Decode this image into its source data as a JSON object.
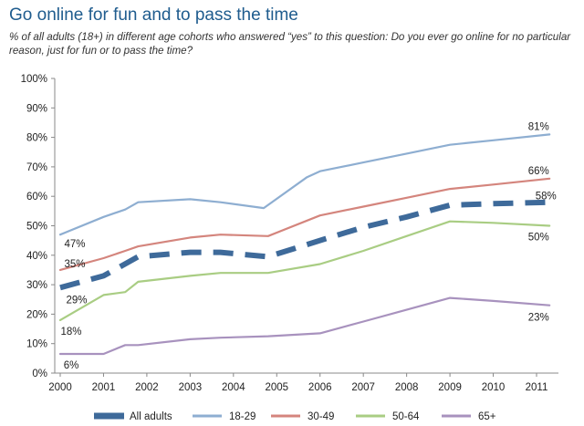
{
  "chart_data": {
    "type": "line",
    "title": "Go online for fun and to pass the time",
    "subtitle": "% of all adults (18+) in different age cohorts who answered “yes” to this question: Do you ever go online for no particular reason, just for fun or to pass the time?",
    "xlabel": "",
    "ylabel": "",
    "ylim": [
      0,
      100
    ],
    "yticks": [
      "0%",
      "10%",
      "20%",
      "30%",
      "40%",
      "50%",
      "60%",
      "70%",
      "80%",
      "90%",
      "100%"
    ],
    "xlim": [
      2000,
      2011.5
    ],
    "xticks": [
      "2000",
      "2001",
      "2002",
      "2003",
      "2004",
      "2005",
      "2006",
      "2007",
      "2008",
      "2009",
      "2010",
      "2011"
    ],
    "grid": false,
    "legend_position": "bottom",
    "series": [
      {
        "name": "All adults",
        "color": "#3e6a9a",
        "dashed": true,
        "x": [
          2000,
          2001,
          2001.8,
          2003,
          2003.7,
          2004.8,
          2006,
          2007,
          2008,
          2009,
          2010,
          2011.3
        ],
        "y": [
          29,
          33,
          39.5,
          41,
          41,
          39.5,
          45,
          49.5,
          53,
          57,
          57.5,
          58
        ]
      },
      {
        "name": "18-29",
        "color": "#8eaed1",
        "dashed": false,
        "x": [
          2000,
          2001,
          2001.5,
          2001.8,
          2003,
          2003.7,
          2004.7,
          2005.7,
          2006,
          2007,
          2008,
          2009,
          2010,
          2011.3
        ],
        "y": [
          47,
          53,
          55.5,
          58,
          59,
          58,
          56,
          66.5,
          68.5,
          71.5,
          74.5,
          77.5,
          79,
          81
        ]
      },
      {
        "name": "30-49",
        "color": "#d4857d",
        "dashed": false,
        "x": [
          2000,
          2001,
          2001.5,
          2001.8,
          2003,
          2003.7,
          2004.8,
          2006,
          2007,
          2008,
          2009,
          2010,
          2011.3
        ],
        "y": [
          35,
          39,
          41.5,
          43,
          46,
          47,
          46.5,
          53.5,
          56.5,
          59.5,
          62.5,
          64,
          66
        ]
      },
      {
        "name": "50-64",
        "color": "#a9cd83",
        "dashed": false,
        "x": [
          2000,
          2001,
          2001.5,
          2001.8,
          2003,
          2003.7,
          2004.8,
          2006,
          2007,
          2008,
          2009,
          2010,
          2011.3
        ],
        "y": [
          18,
          26.5,
          27.5,
          31,
          33,
          34,
          34,
          37,
          41.5,
          46.5,
          51.5,
          51,
          50
        ]
      },
      {
        "name": "65+",
        "color": "#a892be",
        "dashed": false,
        "x": [
          2000,
          2001,
          2001.5,
          2001.8,
          2003,
          2003.7,
          2004.8,
          2006,
          2007,
          2008,
          2009,
          2010,
          2011.3
        ],
        "y": [
          6.5,
          6.5,
          9.5,
          9.5,
          11.5,
          12,
          12.5,
          13.5,
          17.5,
          21.5,
          25.5,
          24.5,
          23
        ]
      }
    ],
    "annotations": [
      {
        "text": "47%",
        "x": 2000,
        "y": 47
      },
      {
        "text": "35%",
        "x": 2000,
        "y": 35
      },
      {
        "text": "29%",
        "x": 2000,
        "y": 29
      },
      {
        "text": "18%",
        "x": 2000,
        "y": 18
      },
      {
        "text": "6%",
        "x": 2000,
        "y": 6.5
      },
      {
        "text": "81%",
        "x": 2011.3,
        "y": 81
      },
      {
        "text": "66%",
        "x": 2011.3,
        "y": 66
      },
      {
        "text": "58%",
        "x": 2011.3,
        "y": 58
      },
      {
        "text": "50%",
        "x": 2011.3,
        "y": 50
      },
      {
        "text": "23%",
        "x": 2011.3,
        "y": 23
      }
    ]
  }
}
